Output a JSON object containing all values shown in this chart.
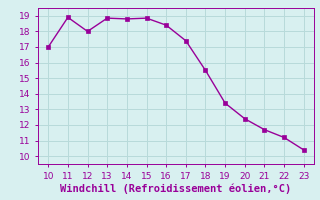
{
  "x": [
    10,
    11,
    12,
    13,
    14,
    15,
    16,
    17,
    18,
    19,
    20,
    21,
    22,
    23
  ],
  "y": [
    17.0,
    18.9,
    18.0,
    18.85,
    18.8,
    18.85,
    18.4,
    17.4,
    15.5,
    13.4,
    12.4,
    11.7,
    11.2,
    10.4
  ],
  "line_color": "#990099",
  "marker": "s",
  "marker_size": 2.5,
  "line_width": 1.0,
  "bg_color": "#d8f0f0",
  "grid_color": "#b8dada",
  "xlabel": "Windchill (Refroidissement éolien,°C)",
  "xlabel_color": "#990099",
  "xlabel_fontsize": 7.5,
  "xlim": [
    9.5,
    23.5
  ],
  "ylim": [
    9.5,
    19.5
  ],
  "xticks": [
    10,
    11,
    12,
    13,
    14,
    15,
    16,
    17,
    18,
    19,
    20,
    21,
    22,
    23
  ],
  "yticks": [
    10,
    11,
    12,
    13,
    14,
    15,
    16,
    17,
    18,
    19
  ],
  "tick_fontsize": 6.5,
  "tick_color": "#990099",
  "spine_color": "#990099"
}
